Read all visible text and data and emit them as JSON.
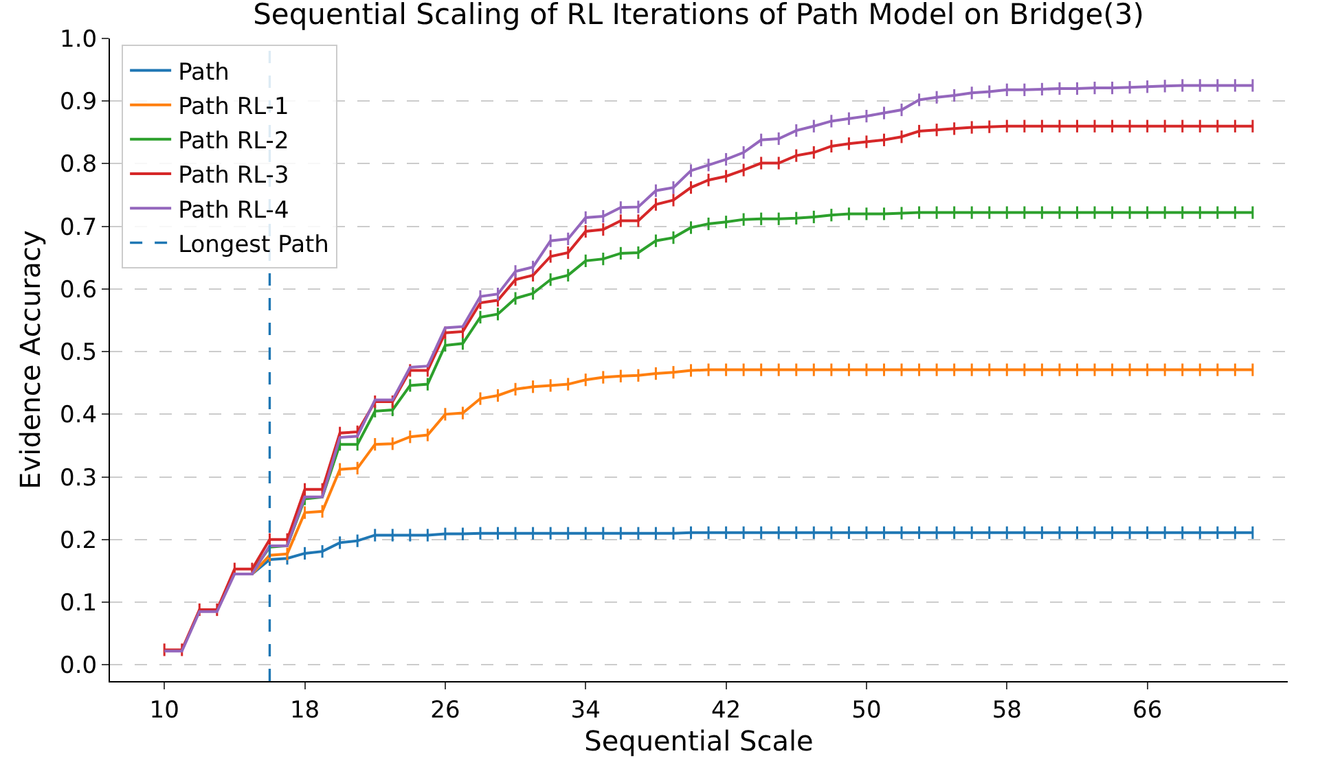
{
  "chart_data": {
    "type": "line",
    "title": "Sequential Scaling of RL Iterations of Path Model on Bridge(3)",
    "xlabel": "Sequential Scale",
    "ylabel": "Evidence Accuracy",
    "x": [
      10,
      11,
      12,
      13,
      14,
      15,
      16,
      17,
      18,
      19,
      20,
      21,
      22,
      23,
      24,
      25,
      26,
      27,
      28,
      29,
      30,
      31,
      32,
      33,
      34,
      35,
      36,
      37,
      38,
      39,
      40,
      41,
      42,
      43,
      44,
      45,
      46,
      47,
      48,
      49,
      50,
      51,
      52,
      53,
      54,
      55,
      56,
      57,
      58,
      59,
      60,
      61,
      62,
      63,
      64,
      65,
      66,
      67,
      68,
      69,
      70,
      71,
      72
    ],
    "series": [
      {
        "name": "Path",
        "color": "#1f77b4",
        "values": [
          null,
          null,
          null,
          null,
          null,
          0.145,
          0.168,
          0.17,
          0.178,
          0.181,
          0.195,
          0.198,
          0.207,
          0.207,
          0.207,
          0.207,
          0.209,
          0.209,
          0.21,
          0.21,
          0.21,
          0.21,
          0.21,
          0.21,
          0.21,
          0.21,
          0.21,
          0.21,
          0.21,
          0.21,
          0.211,
          0.211,
          0.211,
          0.211,
          0.211,
          0.211,
          0.211,
          0.211,
          0.211,
          0.211,
          0.211,
          0.211,
          0.211,
          0.211,
          0.211,
          0.211,
          0.211,
          0.211,
          0.211,
          0.211,
          0.211,
          0.211,
          0.211,
          0.211,
          0.211,
          0.211,
          0.211,
          0.211,
          0.211,
          0.211,
          0.211,
          0.211,
          0.211
        ],
        "errors": [
          null,
          null,
          null,
          null,
          null,
          null,
          0.01,
          0.01,
          0.01,
          0.01,
          0.01,
          0.01,
          0.01,
          0.01,
          0.01,
          0.01,
          0.01,
          0.01,
          0.01,
          0.01,
          0.01,
          0.01,
          0.01,
          0.01,
          0.01,
          0.01,
          0.01,
          0.01,
          0.01,
          0.01,
          0.01,
          0.01,
          0.01,
          0.01,
          0.01,
          0.01,
          0.01,
          0.01,
          0.01,
          0.01,
          0.01,
          0.01,
          0.01,
          0.01,
          0.01,
          0.01,
          0.01,
          0.01,
          0.01,
          0.01,
          0.01,
          0.01,
          0.01,
          0.01,
          0.01,
          0.01,
          0.01,
          0.01,
          0.01,
          0.01,
          0.01,
          0.01,
          0.01
        ]
      },
      {
        "name": "Path RL-1",
        "color": "#ff7f0e",
        "values": [
          null,
          null,
          null,
          null,
          null,
          0.145,
          0.175,
          0.177,
          0.243,
          0.245,
          0.312,
          0.314,
          0.352,
          0.353,
          0.364,
          0.367,
          0.4,
          0.402,
          0.425,
          0.43,
          0.44,
          0.444,
          0.446,
          0.448,
          0.455,
          0.459,
          0.461,
          0.462,
          0.465,
          0.467,
          0.47,
          0.471,
          0.471,
          0.471,
          0.471,
          0.471,
          0.471,
          0.471,
          0.471,
          0.471,
          0.471,
          0.471,
          0.471,
          0.471,
          0.471,
          0.471,
          0.471,
          0.471,
          0.471,
          0.471,
          0.471,
          0.471,
          0.471,
          0.471,
          0.471,
          0.471,
          0.471,
          0.471,
          0.471,
          0.471,
          0.471,
          0.471,
          0.471
        ],
        "errors": [
          null,
          null,
          null,
          null,
          null,
          null,
          0.01,
          0.01,
          0.01,
          0.01,
          0.01,
          0.01,
          0.01,
          0.01,
          0.01,
          0.01,
          0.01,
          0.01,
          0.01,
          0.01,
          0.01,
          0.01,
          0.01,
          0.01,
          0.01,
          0.01,
          0.01,
          0.01,
          0.01,
          0.01,
          0.01,
          0.01,
          0.01,
          0.01,
          0.01,
          0.01,
          0.01,
          0.01,
          0.01,
          0.01,
          0.01,
          0.01,
          0.01,
          0.01,
          0.01,
          0.01,
          0.01,
          0.01,
          0.01,
          0.01,
          0.01,
          0.01,
          0.01,
          0.01,
          0.01,
          0.01,
          0.01,
          0.01,
          0.01,
          0.01,
          0.01,
          0.01,
          0.01
        ]
      },
      {
        "name": "Path RL-2",
        "color": "#2ca02c",
        "values": [
          null,
          null,
          null,
          null,
          null,
          0.148,
          0.188,
          0.19,
          0.265,
          0.268,
          0.352,
          0.352,
          0.405,
          0.407,
          0.446,
          0.448,
          0.51,
          0.513,
          0.555,
          0.56,
          0.585,
          0.593,
          0.615,
          0.622,
          0.645,
          0.648,
          0.657,
          0.658,
          0.677,
          0.682,
          0.698,
          0.704,
          0.707,
          0.711,
          0.712,
          0.712,
          0.713,
          0.715,
          0.718,
          0.72,
          0.72,
          0.72,
          0.721,
          0.722,
          0.722,
          0.722,
          0.722,
          0.722,
          0.722,
          0.722,
          0.722,
          0.722,
          0.722,
          0.722,
          0.722,
          0.722,
          0.722,
          0.722,
          0.722,
          0.722,
          0.722,
          0.722,
          0.722
        ],
        "errors": [
          null,
          null,
          null,
          null,
          null,
          null,
          0.01,
          null,
          0.01,
          null,
          0.01,
          0.01,
          0.01,
          0.01,
          0.01,
          0.01,
          0.01,
          0.01,
          0.01,
          0.01,
          0.01,
          0.01,
          0.01,
          0.01,
          0.01,
          0.01,
          0.01,
          0.01,
          0.01,
          0.01,
          0.01,
          0.01,
          0.01,
          0.01,
          0.01,
          0.01,
          0.01,
          0.01,
          0.01,
          0.01,
          0.01,
          0.01,
          0.01,
          0.01,
          0.01,
          0.01,
          0.01,
          0.01,
          0.01,
          0.01,
          0.01,
          0.01,
          0.01,
          0.01,
          0.01,
          0.01,
          0.01,
          0.01,
          0.01,
          0.01,
          0.01,
          0.01,
          0.01
        ]
      },
      {
        "name": "Path RL-3",
        "color": "#d62728",
        "values": [
          0.024,
          0.024,
          0.088,
          0.088,
          0.153,
          0.153,
          0.2,
          0.2,
          0.28,
          0.28,
          0.37,
          0.372,
          0.42,
          0.42,
          0.47,
          0.47,
          0.53,
          0.532,
          0.578,
          0.582,
          0.615,
          0.622,
          0.652,
          0.658,
          0.692,
          0.695,
          0.709,
          0.709,
          0.735,
          0.742,
          0.762,
          0.774,
          0.78,
          0.79,
          0.801,
          0.801,
          0.813,
          0.818,
          0.828,
          0.832,
          0.835,
          0.838,
          0.843,
          0.852,
          0.854,
          0.856,
          0.858,
          0.859,
          0.86,
          0.86,
          0.86,
          0.86,
          0.86,
          0.86,
          0.86,
          0.86,
          0.86,
          0.86,
          0.86,
          0.86,
          0.86,
          0.86,
          0.86
        ],
        "errors": [
          0.01,
          0.01,
          0.01,
          0.01,
          0.01,
          0.01,
          0.01,
          0.01,
          0.01,
          0.01,
          0.01,
          0.01,
          0.01,
          0.01,
          0.01,
          0.01,
          0.01,
          0.01,
          0.01,
          0.01,
          0.01,
          0.01,
          0.01,
          0.01,
          0.01,
          0.01,
          0.01,
          0.01,
          0.01,
          0.01,
          0.01,
          0.01,
          0.01,
          0.01,
          0.01,
          0.01,
          0.01,
          0.01,
          0.01,
          0.01,
          0.01,
          0.01,
          0.01,
          0.01,
          0.01,
          0.01,
          0.01,
          0.01,
          0.01,
          0.01,
          0.01,
          0.01,
          0.01,
          0.01,
          0.01,
          0.01,
          0.01,
          0.01,
          0.01,
          0.01,
          0.01,
          0.01,
          0.01
        ]
      },
      {
        "name": "Path RL-4",
        "color": "#9467bd",
        "values": [
          0.022,
          0.022,
          0.085,
          0.085,
          0.145,
          0.145,
          0.19,
          0.19,
          0.268,
          0.268,
          0.363,
          0.365,
          0.423,
          0.423,
          0.475,
          0.477,
          0.538,
          0.54,
          0.588,
          0.592,
          0.628,
          0.635,
          0.677,
          0.68,
          0.714,
          0.716,
          0.73,
          0.731,
          0.757,
          0.762,
          0.789,
          0.798,
          0.807,
          0.818,
          0.838,
          0.84,
          0.853,
          0.86,
          0.868,
          0.872,
          0.876,
          0.881,
          0.886,
          0.902,
          0.906,
          0.909,
          0.913,
          0.915,
          0.918,
          0.918,
          0.919,
          0.92,
          0.92,
          0.921,
          0.921,
          0.922,
          0.923,
          0.924,
          0.925,
          0.925,
          0.925,
          0.925,
          0.925
        ],
        "errors": [
          null,
          null,
          null,
          null,
          null,
          null,
          null,
          null,
          null,
          null,
          null,
          null,
          null,
          null,
          null,
          null,
          null,
          null,
          0.01,
          0.01,
          0.01,
          0.01,
          0.01,
          0.01,
          0.01,
          0.01,
          0.01,
          0.01,
          0.01,
          0.01,
          0.01,
          0.01,
          0.01,
          0.01,
          0.01,
          0.01,
          0.01,
          0.01,
          0.01,
          0.01,
          0.01,
          0.01,
          0.01,
          0.01,
          0.01,
          0.01,
          0.01,
          0.01,
          0.01,
          0.01,
          0.01,
          0.01,
          0.01,
          0.01,
          0.01,
          0.01,
          0.01,
          0.01,
          0.01,
          0.01,
          0.01,
          0.01,
          0.01
        ]
      }
    ],
    "ref_lines": [
      {
        "axis": "x",
        "value": 16,
        "label": "Longest Path",
        "color": "#1f77b4",
        "line_style": "dashed"
      }
    ],
    "xlim": [
      6.9,
      74
    ],
    "xticks": [
      10,
      18,
      26,
      34,
      42,
      50,
      58,
      66
    ],
    "ylim": [
      -0.026,
      1.0
    ],
    "yticks": [
      {
        "value": 0,
        "label": "0.0"
      },
      0.1,
      0.2,
      0.3,
      0.4,
      0.5,
      0.6,
      0.7,
      0.8,
      0.9,
      {
        "value": 1,
        "label": "1.0"
      }
    ],
    "grid": "y",
    "legend": "top left",
    "marker": "none",
    "line_style": "solid"
  }
}
